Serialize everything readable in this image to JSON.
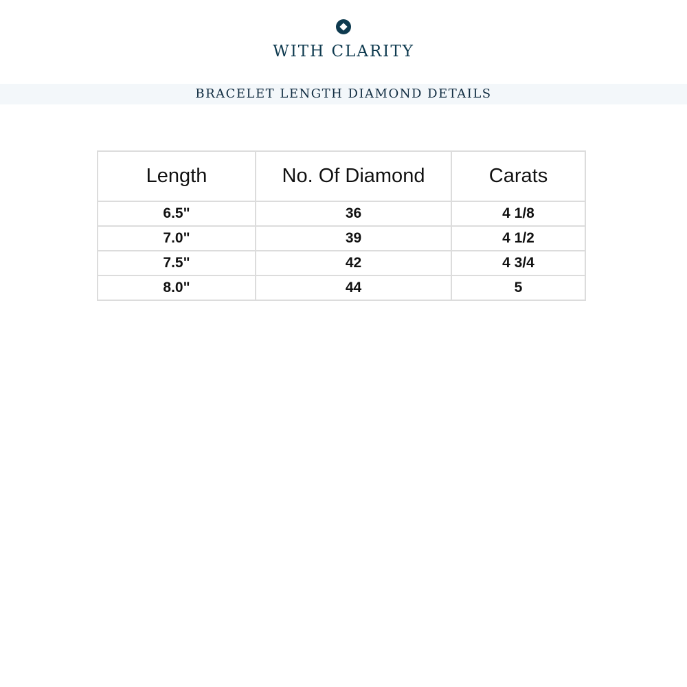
{
  "brand": {
    "name": "WITH CLARITY",
    "logo_icon": "diamond-in-circle-icon",
    "color": "#0e3a4f"
  },
  "banner": {
    "title": "BRACELET LENGTH DIAMOND DETAILS"
  },
  "table": {
    "headers": [
      "Length",
      "No. Of Diamond",
      "Carats"
    ],
    "rows": [
      [
        "6.5\"",
        "36",
        "4 1/8"
      ],
      [
        "7.0\"",
        "39",
        "4 1/2"
      ],
      [
        "7.5\"",
        "42",
        "4 3/4"
      ],
      [
        "8.0\"",
        "44",
        "5"
      ]
    ]
  }
}
